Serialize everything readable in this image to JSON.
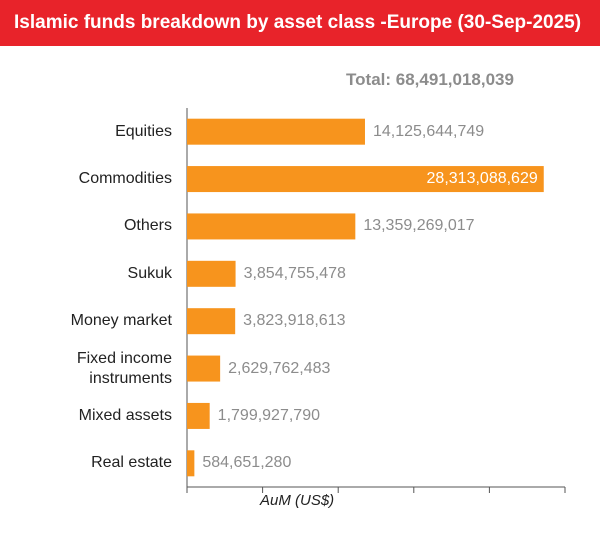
{
  "chart_data": {
    "type": "hbar",
    "title": "Islamic funds breakdown by asset class -Europe (30-Sep-2025)",
    "total": "Total: 68,491,018,039",
    "xlabel": "AuM (US$)",
    "categories": [
      "Equities",
      "Commodities",
      "Others",
      "Sukuk",
      "Money market",
      "Fixed income instruments",
      "Mixed assets",
      "Real estate"
    ],
    "values": [
      14125644749,
      28313088629,
      13359269017,
      3854755478,
      3823918613,
      2629762483,
      1799927790,
      584651280
    ],
    "value_labels": [
      "14,125,644,749",
      "28,313,088,629",
      "13,359,269,017",
      "3,854,755,478",
      "3,823,918,613",
      "2,629,762,483",
      "1,799,927,790",
      "584,651,280"
    ],
    "color": "#f7941d",
    "xlim": [
      0,
      30000000000
    ],
    "xticks": [
      0,
      6000000000,
      12000000000,
      18000000000,
      24000000000,
      30000000000
    ]
  }
}
